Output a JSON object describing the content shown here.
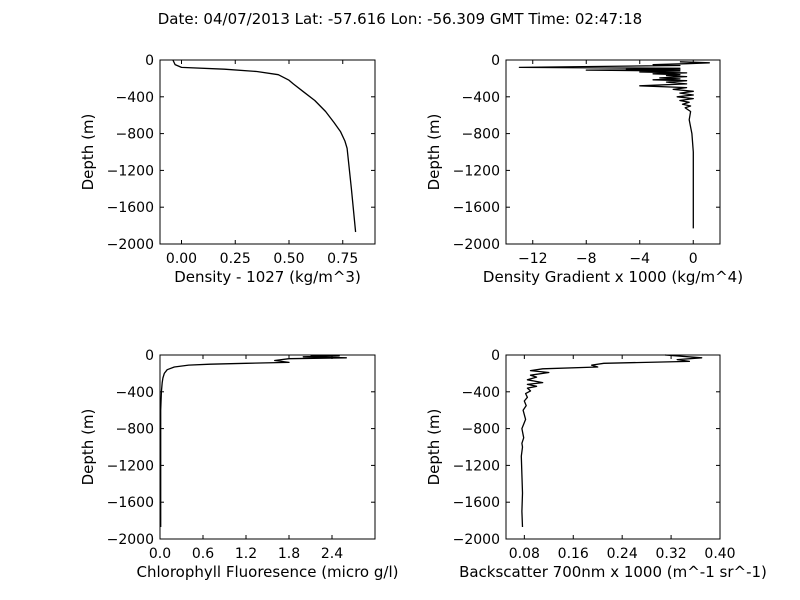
{
  "title": "Date: 04/07/2013  Lat:  -57.616 Lon:  -56.309  GMT Time: 02:47:18",
  "chart_data": [
    {
      "type": "line",
      "id": "density",
      "xlabel": "Density - 1027 (kg/m^3)",
      "ylabel": "Depth (m)",
      "xlim": [
        -0.1,
        0.9
      ],
      "ylim": [
        -2000,
        0
      ],
      "xticks": [
        0.0,
        0.25,
        0.5,
        0.75
      ],
      "xtick_labels": [
        "0.00",
        "0.25",
        "0.50",
        "0.75"
      ],
      "yticks": [
        0,
        -400,
        -800,
        -1200,
        -1600,
        -2000
      ],
      "ytick_labels": [
        "0",
        "−400",
        "−800",
        "−1200",
        "−1600",
        "−2000"
      ],
      "x": [
        -0.04,
        -0.03,
        0.0,
        0.2,
        0.35,
        0.45,
        0.5,
        0.52,
        0.57,
        0.62,
        0.67,
        0.71,
        0.74,
        0.76,
        0.77,
        0.79,
        0.81
      ],
      "y": [
        0,
        -50,
        -80,
        -100,
        -125,
        -160,
        -220,
        -260,
        -350,
        -440,
        -560,
        -680,
        -780,
        -880,
        -960,
        -1400,
        -1870
      ]
    },
    {
      "type": "line",
      "id": "density-gradient",
      "xlabel": "Density Gradient x 1000 (kg/m^4)",
      "ylabel": "Depth (m)",
      "xlim": [
        -14,
        2
      ],
      "ylim": [
        -2000,
        0
      ],
      "xticks": [
        -12,
        -8,
        -4,
        0
      ],
      "xtick_labels": [
        "−12",
        "−8",
        "−4",
        "0"
      ],
      "yticks": [
        0,
        -400,
        -800,
        -1200,
        -1600,
        -2000
      ],
      "ytick_labels": [
        "0",
        "−400",
        "−800",
        "−1200",
        "−1600",
        "−2000"
      ],
      "x": [
        -1,
        1.2,
        -0.5,
        -3,
        -1,
        -13,
        -1,
        -5,
        -1,
        -8,
        -1,
        -4,
        -0.5,
        -3,
        -1,
        -2,
        -0.5,
        -2.5,
        -1,
        -3,
        -0.5,
        -2,
        -0.5,
        -4,
        -0.5,
        -1.5,
        0,
        -1,
        0,
        -1.2,
        0,
        -1,
        -0.3,
        -0.8,
        -0.2,
        -0.6,
        -0.2,
        -0.3,
        -0.1,
        0,
        0,
        0,
        0
      ],
      "y": [
        -20,
        -30,
        -40,
        -50,
        -60,
        -80,
        -90,
        -100,
        -105,
        -110,
        -120,
        -130,
        -140,
        -150,
        -160,
        -170,
        -180,
        -195,
        -205,
        -215,
        -225,
        -240,
        -260,
        -280,
        -300,
        -320,
        -340,
        -360,
        -380,
        -400,
        -420,
        -440,
        -460,
        -480,
        -500,
        -520,
        -560,
        -650,
        -800,
        -1000,
        -1200,
        -1500,
        -1830
      ]
    },
    {
      "type": "line",
      "id": "chlorophyll",
      "xlabel": "Chlorophyll Fluoresence (micro g/l)",
      "ylabel": "Depth (m)",
      "xlim": [
        0.0,
        3.0
      ],
      "ylim": [
        -2000,
        0
      ],
      "xticks": [
        0.0,
        0.6,
        1.2,
        1.8,
        2.4
      ],
      "xtick_labels": [
        "0.0",
        "0.6",
        "1.2",
        "1.8",
        "2.4"
      ],
      "yticks": [
        0,
        -400,
        -800,
        -1200,
        -1600,
        -2000
      ],
      "ytick_labels": [
        "0",
        "−400",
        "−800",
        "−1200",
        "−1600",
        "−2000"
      ],
      "x": [
        2.1,
        2.5,
        2.0,
        2.6,
        1.8,
        1.6,
        1.8,
        1.2,
        0.7,
        0.4,
        0.2,
        0.1,
        0.06,
        0.04,
        0.03,
        0.02,
        0.01,
        0.01,
        0.01
      ],
      "y": [
        -10,
        -10,
        -20,
        -30,
        -40,
        -60,
        -80,
        -90,
        -100,
        -110,
        -130,
        -160,
        -200,
        -250,
        -300,
        -400,
        -600,
        -1200,
        -1870
      ]
    },
    {
      "type": "line",
      "id": "backscatter",
      "xlabel": "Backscatter 700nm x 1000 (m^-1 sr^-1)",
      "ylabel": "Depth (m)",
      "xlim": [
        0.05,
        0.4
      ],
      "ylim": [
        -2000,
        0
      ],
      "xticks": [
        0.08,
        0.16,
        0.24,
        0.32,
        0.4
      ],
      "xtick_labels": [
        "0.08",
        "0.16",
        "0.24",
        "0.32",
        "0.40"
      ],
      "yticks": [
        0,
        -400,
        -800,
        -1200,
        -1600,
        -2000
      ],
      "ytick_labels": [
        "0",
        "−400",
        "−800",
        "−1200",
        "−1600",
        "−2000"
      ],
      "x": [
        0.31,
        0.37,
        0.33,
        0.35,
        0.21,
        0.19,
        0.2,
        0.11,
        0.09,
        0.12,
        0.09,
        0.1,
        0.085,
        0.11,
        0.085,
        0.1,
        0.085,
        0.09,
        0.082,
        0.085,
        0.08,
        0.083,
        0.078,
        0.082,
        0.076,
        0.079,
        0.076,
        0.077,
        0.075,
        0.076,
        0.077,
        0.076,
        0.077
      ],
      "y": [
        0,
        -30,
        -50,
        -70,
        -90,
        -110,
        -130,
        -150,
        -170,
        -190,
        -220,
        -240,
        -270,
        -300,
        -320,
        -340,
        -360,
        -390,
        -420,
        -460,
        -500,
        -550,
        -600,
        -700,
        -800,
        -900,
        -960,
        -1000,
        -1100,
        -1300,
        -1500,
        -1700,
        -1870
      ]
    }
  ]
}
